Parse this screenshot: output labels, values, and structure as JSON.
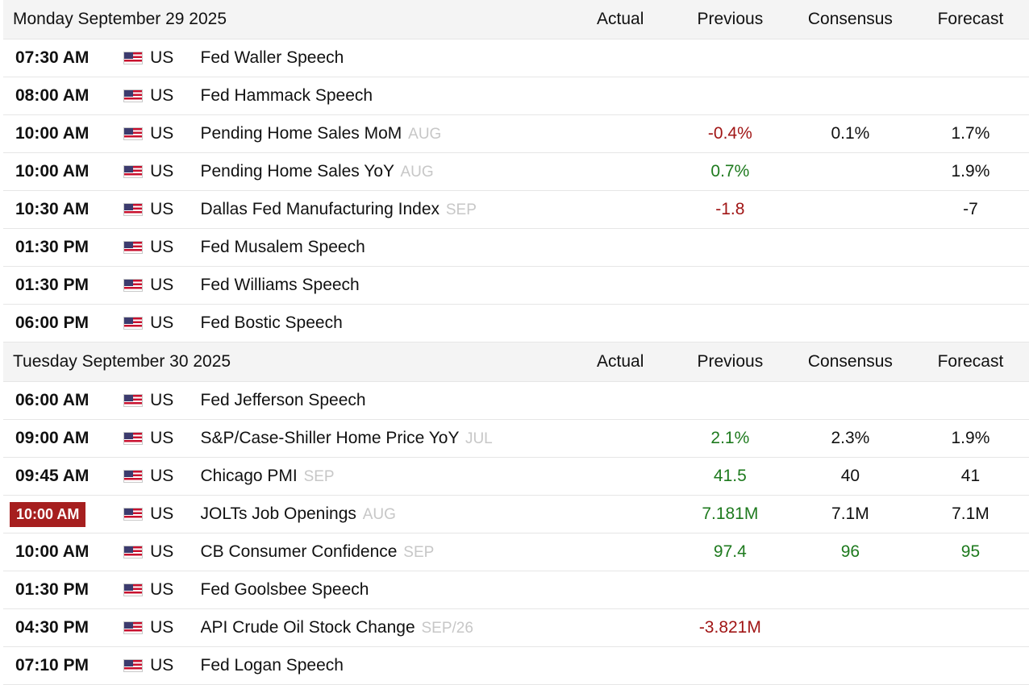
{
  "columns": {
    "actual": "Actual",
    "previous": "Previous",
    "consensus": "Consensus",
    "forecast": "Forecast"
  },
  "icons": {
    "flag": "us-flag-icon"
  },
  "colors": {
    "negative": "#a11616",
    "positive": "#1e7a1e",
    "highlight": "#a61f1f"
  },
  "days": [
    {
      "date": "Monday September 29 2025",
      "events": [
        {
          "time": "07:30 AM",
          "country": "US",
          "event": "Fed Waller Speech",
          "ref": "",
          "actual": "",
          "previous": "",
          "previous_tone": "neu",
          "consensus": "",
          "consensus_tone": "neu",
          "forecast": "",
          "forecast_tone": "neu",
          "highlight": false
        },
        {
          "time": "08:00 AM",
          "country": "US",
          "event": "Fed Hammack Speech",
          "ref": "",
          "actual": "",
          "previous": "",
          "previous_tone": "neu",
          "consensus": "",
          "consensus_tone": "neu",
          "forecast": "",
          "forecast_tone": "neu",
          "highlight": false
        },
        {
          "time": "10:00 AM",
          "country": "US",
          "event": "Pending Home Sales MoM",
          "ref": "AUG",
          "actual": "",
          "previous": "-0.4%",
          "previous_tone": "neg",
          "consensus": "0.1%",
          "consensus_tone": "neu",
          "forecast": "1.7%",
          "forecast_tone": "neu",
          "highlight": false
        },
        {
          "time": "10:00 AM",
          "country": "US",
          "event": "Pending Home Sales YoY",
          "ref": "AUG",
          "actual": "",
          "previous": "0.7%",
          "previous_tone": "pos",
          "consensus": "",
          "consensus_tone": "neu",
          "forecast": "1.9%",
          "forecast_tone": "neu",
          "highlight": false
        },
        {
          "time": "10:30 AM",
          "country": "US",
          "event": "Dallas Fed Manufacturing Index",
          "ref": "SEP",
          "actual": "",
          "previous": "-1.8",
          "previous_tone": "neg",
          "consensus": "",
          "consensus_tone": "neu",
          "forecast": "-7",
          "forecast_tone": "neu",
          "highlight": false
        },
        {
          "time": "01:30 PM",
          "country": "US",
          "event": "Fed Musalem Speech",
          "ref": "",
          "actual": "",
          "previous": "",
          "previous_tone": "neu",
          "consensus": "",
          "consensus_tone": "neu",
          "forecast": "",
          "forecast_tone": "neu",
          "highlight": false
        },
        {
          "time": "01:30 PM",
          "country": "US",
          "event": "Fed Williams Speech",
          "ref": "",
          "actual": "",
          "previous": "",
          "previous_tone": "neu",
          "consensus": "",
          "consensus_tone": "neu",
          "forecast": "",
          "forecast_tone": "neu",
          "highlight": false
        },
        {
          "time": "06:00 PM",
          "country": "US",
          "event": "Fed Bostic Speech",
          "ref": "",
          "actual": "",
          "previous": "",
          "previous_tone": "neu",
          "consensus": "",
          "consensus_tone": "neu",
          "forecast": "",
          "forecast_tone": "neu",
          "highlight": false
        }
      ]
    },
    {
      "date": "Tuesday September 30 2025",
      "events": [
        {
          "time": "06:00 AM",
          "country": "US",
          "event": "Fed Jefferson Speech",
          "ref": "",
          "actual": "",
          "previous": "",
          "previous_tone": "neu",
          "consensus": "",
          "consensus_tone": "neu",
          "forecast": "",
          "forecast_tone": "neu",
          "highlight": false
        },
        {
          "time": "09:00 AM",
          "country": "US",
          "event": "S&P/Case-Shiller Home Price YoY",
          "ref": "JUL",
          "actual": "",
          "previous": "2.1%",
          "previous_tone": "pos",
          "consensus": "2.3%",
          "consensus_tone": "neu",
          "forecast": "1.9%",
          "forecast_tone": "neu",
          "highlight": false
        },
        {
          "time": "09:45 AM",
          "country": "US",
          "event": "Chicago PMI",
          "ref": "SEP",
          "actual": "",
          "previous": "41.5",
          "previous_tone": "pos",
          "consensus": "40",
          "consensus_tone": "neu",
          "forecast": "41",
          "forecast_tone": "neu",
          "highlight": false
        },
        {
          "time": "10:00 AM",
          "country": "US",
          "event": "JOLTs Job Openings",
          "ref": "AUG",
          "actual": "",
          "previous": "7.181M",
          "previous_tone": "pos",
          "consensus": "7.1M",
          "consensus_tone": "neu",
          "forecast": "7.1M",
          "forecast_tone": "neu",
          "highlight": true
        },
        {
          "time": "10:00 AM",
          "country": "US",
          "event": "CB Consumer Confidence",
          "ref": "SEP",
          "actual": "",
          "previous": "97.4",
          "previous_tone": "pos",
          "consensus": "96",
          "consensus_tone": "pos",
          "forecast": "95",
          "forecast_tone": "pos",
          "highlight": false
        },
        {
          "time": "01:30 PM",
          "country": "US",
          "event": "Fed Goolsbee Speech",
          "ref": "",
          "actual": "",
          "previous": "",
          "previous_tone": "neu",
          "consensus": "",
          "consensus_tone": "neu",
          "forecast": "",
          "forecast_tone": "neu",
          "highlight": false
        },
        {
          "time": "04:30 PM",
          "country": "US",
          "event": "API Crude Oil Stock Change",
          "ref": "SEP/26",
          "actual": "",
          "previous": "-3.821M",
          "previous_tone": "neg",
          "consensus": "",
          "consensus_tone": "neu",
          "forecast": "",
          "forecast_tone": "neu",
          "highlight": false
        },
        {
          "time": "07:10 PM",
          "country": "US",
          "event": "Fed Logan Speech",
          "ref": "",
          "actual": "",
          "previous": "",
          "previous_tone": "neu",
          "consensus": "",
          "consensus_tone": "neu",
          "forecast": "",
          "forecast_tone": "neu",
          "highlight": false
        }
      ]
    }
  ]
}
